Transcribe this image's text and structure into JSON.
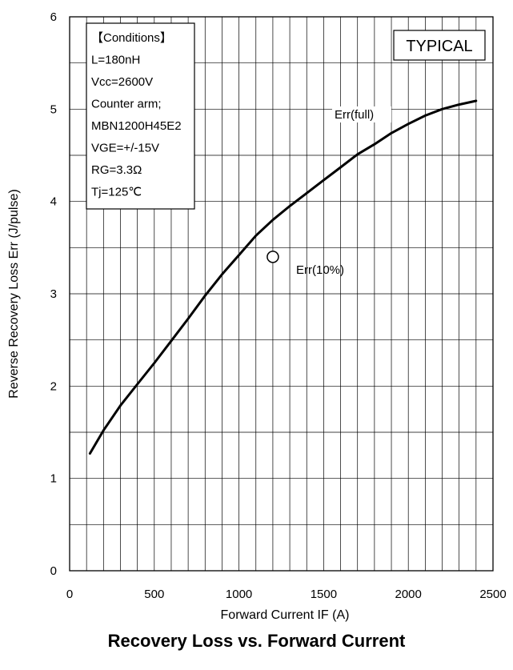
{
  "caption": "Recovery Loss vs. Forward Current",
  "badge": "TYPICAL",
  "conditions": [
    "【Conditions】",
    "L=180nH",
    "Vcc=2600V",
    "Counter arm;",
    "MBN1200H45E2",
    "VGE=+/-15V",
    "RG=3.3Ω",
    "Tj=125℃"
  ],
  "chart_data": {
    "type": "line",
    "title": "Recovery Loss vs. Forward Current",
    "xlabel": "Forward Current IF (A)",
    "ylabel": "Reverse Recovery Loss Err (J/pulse)",
    "xlim": [
      0,
      2500
    ],
    "ylim": [
      0,
      6
    ],
    "x_ticks": [
      "0",
      "500",
      "1000",
      "1500",
      "2000",
      "2500"
    ],
    "y_ticks": [
      "0",
      "1",
      "2",
      "3",
      "4",
      "5",
      "6"
    ],
    "x_minor_step": 100,
    "y_minor_step": 0.5,
    "grid": true,
    "series": [
      {
        "name": "Err(full)",
        "x": [
          120,
          200,
          300,
          400,
          500,
          600,
          700,
          800,
          900,
          1000,
          1100,
          1200,
          1300,
          1400,
          1500,
          1600,
          1700,
          1800,
          1900,
          2000,
          2100,
          2200,
          2300,
          2400
        ],
        "y": [
          1.27,
          1.52,
          1.79,
          2.02,
          2.25,
          2.49,
          2.73,
          2.98,
          3.21,
          3.42,
          3.63,
          3.8,
          3.95,
          4.09,
          4.23,
          4.37,
          4.51,
          4.62,
          4.74,
          4.84,
          4.93,
          5.0,
          5.05,
          5.09
        ]
      },
      {
        "name": "Err(10%)",
        "x": [
          1200
        ],
        "y": [
          3.4
        ],
        "marker": "open-circle"
      }
    ]
  }
}
